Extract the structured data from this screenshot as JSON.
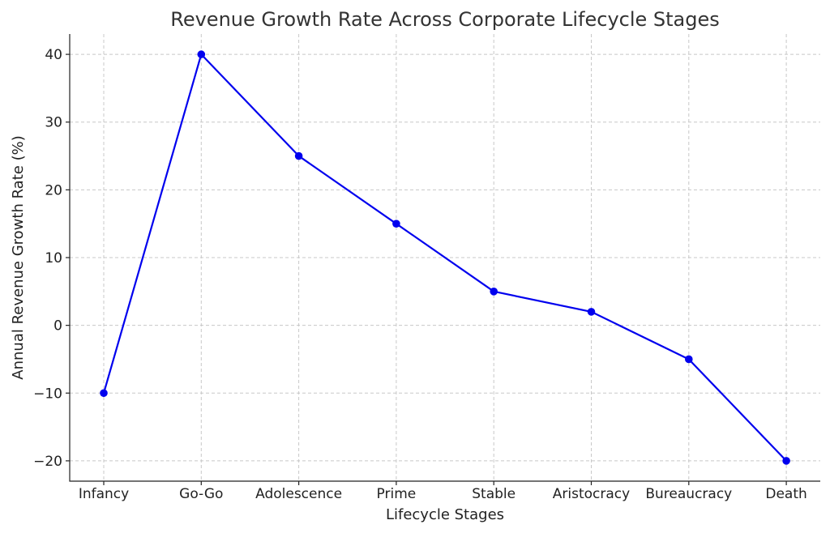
{
  "chart_data": {
    "type": "line",
    "title": "Revenue Growth Rate Across Corporate Lifecycle Stages",
    "xlabel": "Lifecycle Stages",
    "ylabel": "Annual Revenue Growth Rate (%)",
    "categories": [
      "Infancy",
      "Go-Go",
      "Adolescence",
      "Prime",
      "Stable",
      "Aristocracy",
      "Bureaucracy",
      "Death"
    ],
    "series": [
      {
        "values": [
          -10,
          40,
          25,
          15,
          5,
          2,
          -5,
          -20
        ],
        "color": "#0000ee",
        "marker": "circle"
      }
    ],
    "ylim": [
      -23,
      43
    ],
    "yticks": [
      40,
      30,
      20,
      10,
      0,
      -10,
      -20
    ],
    "ytick_labels": [
      "40",
      "30",
      "20",
      "10",
      "0",
      "−10",
      "−20"
    ],
    "grid": true
  }
}
